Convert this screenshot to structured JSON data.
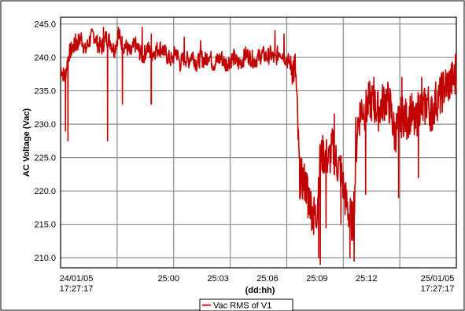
{
  "chart_data": {
    "type": "line",
    "title": "",
    "xlabel": "(dd:hh)",
    "ylabel": "AC Voltage (Vac)",
    "ylim": [
      208.5,
      246.0
    ],
    "yticks": [
      "210.0",
      "215.0",
      "220.0",
      "225.0",
      "230.0",
      "235.0",
      "240.0",
      "245.0"
    ],
    "ytick_values": [
      210,
      215,
      220,
      225,
      230,
      235,
      240,
      245
    ],
    "xlim": [
      0,
      24
    ],
    "xticks": [
      {
        "x": 0,
        "line1": "24/01/05",
        "line2": "17:27:17"
      },
      {
        "x": 6.55,
        "line1": "25:00",
        "line2": ""
      },
      {
        "x": 9.55,
        "line1": "25:03",
        "line2": ""
      },
      {
        "x": 12.55,
        "line1": "25:06",
        "line2": ""
      },
      {
        "x": 15.55,
        "line1": "25:09",
        "line2": ""
      },
      {
        "x": 18.55,
        "line1": "25:12",
        "line2": ""
      },
      {
        "x": 24,
        "line1": "25/01/05",
        "line2": "17:27:17"
      }
    ],
    "grid": true,
    "legend_position": "bottom-center",
    "series": [
      {
        "name": "Vac RMS of V1",
        "color": "#C00000",
        "x": [
          0,
          0.25,
          0.5,
          0.75,
          1.0,
          1.25,
          1.5,
          1.75,
          2.0,
          2.25,
          2.5,
          2.75,
          3.0,
          3.25,
          3.5,
          3.75,
          4.0,
          4.25,
          4.5,
          4.75,
          5.0,
          5.25,
          5.5,
          5.75,
          6.0,
          6.25,
          6.5,
          6.75,
          7.0,
          7.25,
          7.5,
          7.75,
          8.0,
          8.25,
          8.5,
          8.75,
          9.0,
          9.25,
          9.5,
          9.75,
          10.0,
          10.25,
          10.5,
          10.75,
          11.0,
          11.25,
          11.5,
          11.75,
          12.0,
          12.25,
          12.5,
          12.75,
          13.0,
          13.25,
          13.5,
          13.75,
          14.0,
          14.25,
          14.5,
          14.75,
          15.0,
          15.25,
          15.5,
          15.75,
          16.0,
          16.25,
          16.5,
          16.75,
          17.0,
          17.25,
          17.5,
          17.75,
          18.0,
          18.25,
          18.5,
          18.75,
          19.0,
          19.25,
          19.5,
          19.75,
          20.0,
          20.25,
          20.5,
          20.75,
          21.0,
          21.25,
          21.5,
          21.75,
          22.0,
          22.25,
          22.5,
          22.75,
          23.0,
          23.25,
          23.5,
          23.75,
          24.0
        ],
        "values": [
          238.5,
          237.0,
          240.5,
          241.5,
          242.0,
          243.0,
          241.0,
          242.5,
          243.5,
          242.0,
          241.5,
          243.0,
          242.5,
          241.0,
          243.5,
          242.0,
          241.5,
          240.5,
          242.0,
          241.0,
          240.0,
          241.5,
          240.5,
          241.0,
          241.5,
          241.0,
          240.0,
          239.5,
          241.0,
          239.0,
          240.0,
          239.5,
          240.5,
          239.0,
          240.0,
          239.5,
          240.5,
          239.0,
          239.5,
          240.0,
          239.0,
          239.5,
          240.0,
          239.0,
          239.5,
          240.5,
          240.0,
          239.5,
          240.0,
          240.5,
          240.0,
          240.5,
          239.5,
          241.0,
          240.5,
          239.5,
          239.0,
          238.0,
          222.0,
          221.5,
          220.0,
          217.0,
          216.0,
          225.0,
          225.5,
          224.5,
          226.5,
          224.0,
          223.0,
          219.0,
          216.5,
          215.0,
          230.0,
          232.5,
          232.0,
          233.5,
          233.0,
          232.0,
          233.0,
          234.0,
          232.5,
          228.5,
          230.0,
          231.5,
          230.5,
          232.0,
          229.5,
          233.0,
          232.0,
          233.5,
          231.5,
          233.5,
          234.0,
          235.5,
          236.0,
          236.5,
          237.0
        ]
      }
    ],
    "spikes": [
      {
        "x": 0.3,
        "value": 229.0
      },
      {
        "x": 0.45,
        "value": 227.5
      },
      {
        "x": 2.85,
        "value": 227.5
      },
      {
        "x": 3.75,
        "value": 233.0
      },
      {
        "x": 5.5,
        "value": 233.0
      },
      {
        "x": 14.5,
        "value": 219.0
      },
      {
        "x": 15.0,
        "value": 216.0
      },
      {
        "x": 15.35,
        "value": 213.5
      },
      {
        "x": 15.65,
        "value": 210.0
      },
      {
        "x": 15.75,
        "value": 209.0
      },
      {
        "x": 16.1,
        "value": 214.5
      },
      {
        "x": 17.0,
        "value": 215.0
      },
      {
        "x": 17.55,
        "value": 210.0
      },
      {
        "x": 17.8,
        "value": 209.5
      },
      {
        "x": 18.5,
        "value": 219.5
      },
      {
        "x": 20.5,
        "value": 219.0
      },
      {
        "x": 21.7,
        "value": 222.0
      },
      {
        "x": 22.5,
        "value": 229.0
      }
    ],
    "peaks": [
      {
        "x": 0.9,
        "value": 243.5
      },
      {
        "x": 1.9,
        "value": 244.0
      },
      {
        "x": 2.6,
        "value": 244.5
      },
      {
        "x": 3.5,
        "value": 244.5
      },
      {
        "x": 4.95,
        "value": 244.5
      },
      {
        "x": 5.5,
        "value": 243.5
      },
      {
        "x": 7.5,
        "value": 243.0
      },
      {
        "x": 8.5,
        "value": 242.5
      },
      {
        "x": 13.0,
        "value": 244.0
      },
      {
        "x": 13.55,
        "value": 243.5
      },
      {
        "x": 16.6,
        "value": 231.5
      },
      {
        "x": 17.9,
        "value": 231.0
      },
      {
        "x": 19.0,
        "value": 237.0
      },
      {
        "x": 20.7,
        "value": 237.0
      },
      {
        "x": 21.9,
        "value": 237.0
      },
      {
        "x": 23.95,
        "value": 240.5
      }
    ]
  }
}
